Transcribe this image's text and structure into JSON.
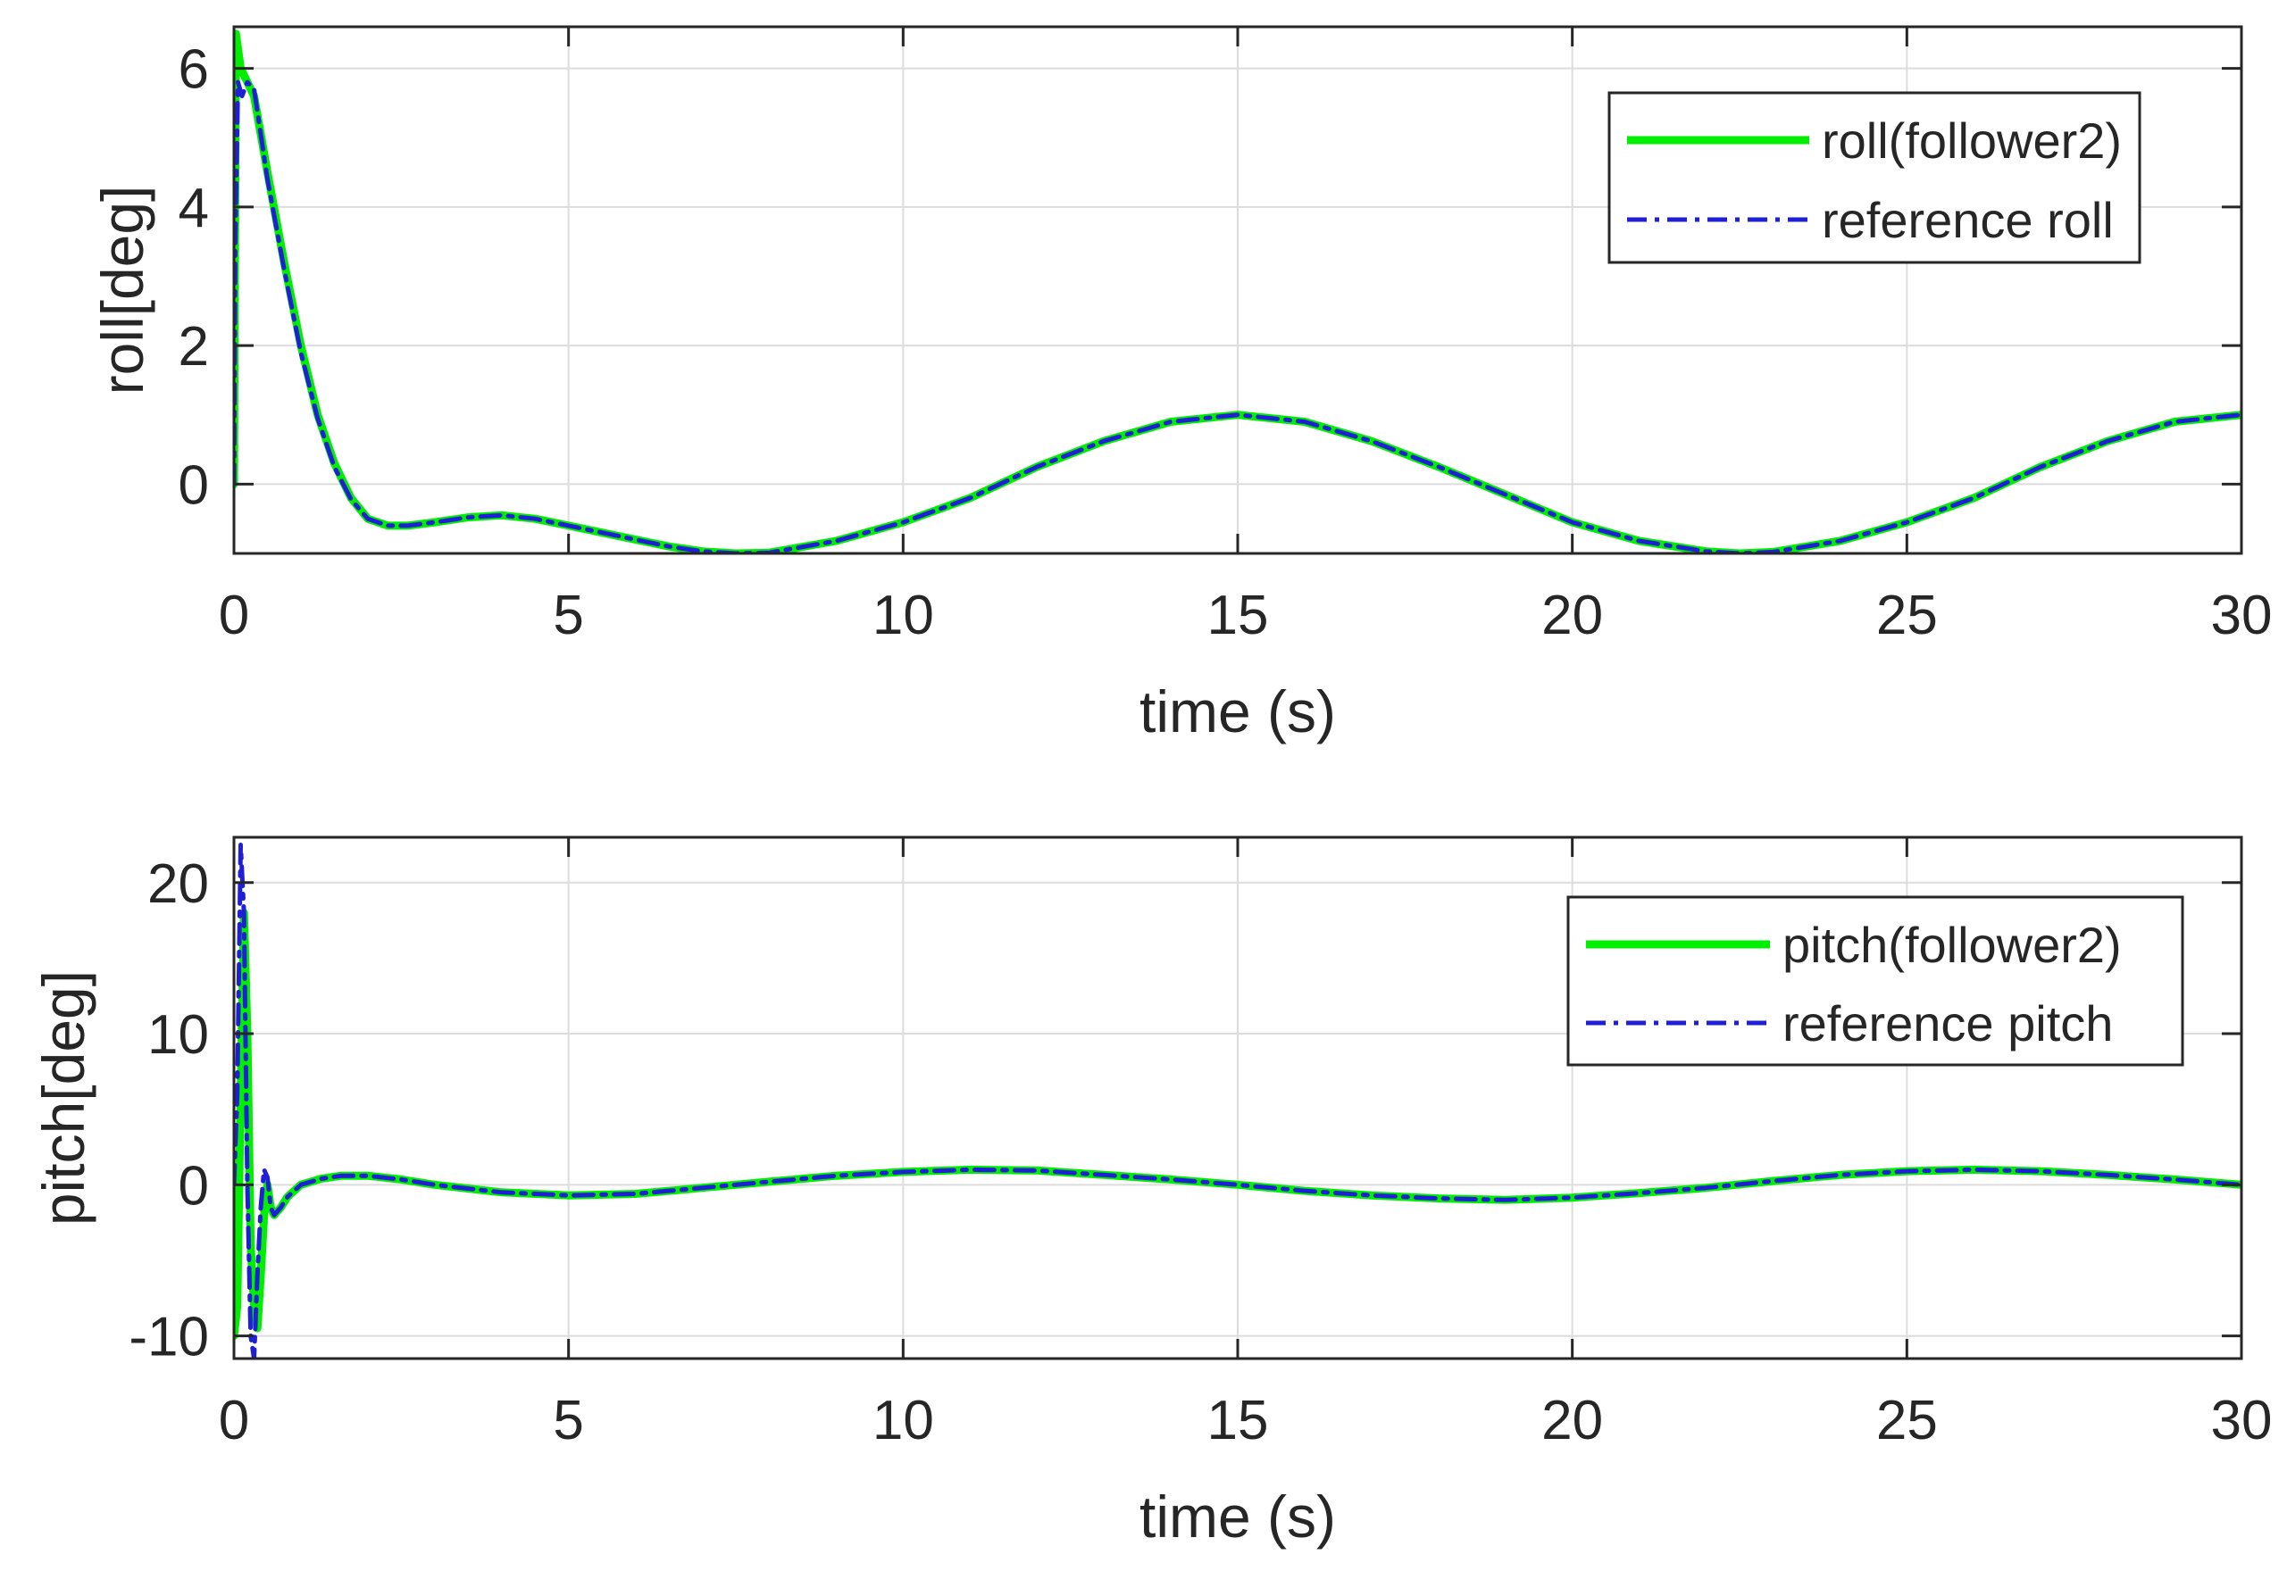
{
  "chart_data": [
    {
      "type": "line",
      "xlabel": "time (s)",
      "ylabel": "roll[deg]",
      "xlim": [
        0,
        30
      ],
      "ylim": [
        -1,
        6.6
      ],
      "xticks": [
        0,
        5,
        10,
        15,
        20,
        25,
        30
      ],
      "yticks": [
        0,
        2,
        4,
        6
      ],
      "grid": true,
      "legend_location": "top-right",
      "colors": {
        "follower": "#00ee00",
        "reference": "#1f1fd6"
      },
      "series": [
        {
          "name": "roll(follower2)",
          "style": "solid",
          "x": [
            0,
            0.03,
            0.1,
            0.3,
            0.5,
            0.75,
            1.0,
            1.25,
            1.5,
            1.75,
            2.0,
            2.3,
            2.6,
            3.0,
            3.5,
            4.0,
            4.5,
            5.0,
            5.5,
            6.0,
            6.5,
            7.0,
            7.5,
            8.0,
            9.0,
            10.0,
            11.0,
            12.0,
            13.0,
            14.0,
            15.0,
            16.0,
            17.0,
            18.0,
            19.0,
            20.0,
            21.0,
            22.0,
            22.5,
            23.0,
            24.0,
            25.0,
            26.0,
            27.0,
            28.0,
            29.0,
            30.0
          ],
          "y": [
            0,
            6.5,
            6.0,
            5.6,
            4.5,
            3.2,
            2.0,
            1.0,
            0.3,
            -0.2,
            -0.5,
            -0.6,
            -0.6,
            -0.55,
            -0.48,
            -0.45,
            -0.5,
            -0.6,
            -0.7,
            -0.8,
            -0.9,
            -0.97,
            -1.0,
            -0.99,
            -0.82,
            -0.55,
            -0.2,
            0.25,
            0.62,
            0.9,
            1.0,
            0.9,
            0.62,
            0.25,
            -0.15,
            -0.55,
            -0.82,
            -0.97,
            -1.0,
            -0.98,
            -0.82,
            -0.55,
            -0.2,
            0.25,
            0.62,
            0.9,
            1.0
          ]
        },
        {
          "name": "reference roll",
          "style": "dashdot",
          "x": [
            0,
            0.02,
            0.06,
            0.12,
            0.2,
            0.3,
            0.5,
            0.75,
            1.0,
            1.25,
            1.5,
            1.75,
            2.0,
            2.3,
            2.6,
            3.0,
            3.5,
            4.0,
            4.5,
            5.0,
            5.5,
            6.0,
            6.5,
            7.0,
            7.5,
            8.0,
            9.0,
            10.0,
            11.0,
            12.0,
            13.0,
            14.0,
            15.0,
            16.0,
            17.0,
            18.0,
            19.0,
            20.0,
            21.0,
            22.0,
            22.5,
            23.0,
            24.0,
            25.0,
            26.0,
            27.0,
            28.0,
            29.0,
            30.0
          ],
          "y": [
            0,
            3.5,
            5.8,
            5.6,
            5.8,
            5.7,
            4.4,
            3.1,
            1.9,
            0.95,
            0.25,
            -0.22,
            -0.5,
            -0.6,
            -0.6,
            -0.55,
            -0.48,
            -0.45,
            -0.5,
            -0.6,
            -0.7,
            -0.8,
            -0.9,
            -0.97,
            -1.0,
            -0.99,
            -0.82,
            -0.55,
            -0.2,
            0.25,
            0.62,
            0.9,
            1.0,
            0.9,
            0.62,
            0.25,
            -0.15,
            -0.55,
            -0.82,
            -0.97,
            -1.0,
            -0.98,
            -0.82,
            -0.55,
            -0.2,
            0.25,
            0.62,
            0.9,
            1.0
          ]
        }
      ]
    },
    {
      "type": "line",
      "xlabel": "time (s)",
      "ylabel": "pitch[deg]",
      "xlim": [
        0,
        30
      ],
      "ylim": [
        -11.5,
        23
      ],
      "xticks": [
        0,
        5,
        10,
        15,
        20,
        25,
        30
      ],
      "yticks": [
        -10,
        0,
        10,
        20
      ],
      "grid": true,
      "legend_location": "top-right",
      "colors": {
        "follower": "#00ee00",
        "reference": "#1f1fd6"
      },
      "series": [
        {
          "name": "pitch(follower2)",
          "style": "solid",
          "x": [
            0,
            0.05,
            0.1,
            0.15,
            0.2,
            0.25,
            0.3,
            0.35,
            0.4,
            0.45,
            0.5,
            0.55,
            0.6,
            0.7,
            0.8,
            1.0,
            1.3,
            1.6,
            2.0,
            2.5,
            3.0,
            4.0,
            5.0,
            6.0,
            7.0,
            8.0,
            9.0,
            10.0,
            11.0,
            12.0,
            13.0,
            14.0,
            15.0,
            16.0,
            17.0,
            18.0,
            19.0,
            20.0,
            21.0,
            22.0,
            23.0,
            24.0,
            25.0,
            26.0,
            27.0,
            28.0,
            29.0,
            30.0
          ],
          "y": [
            -10,
            -8,
            6,
            18,
            10,
            -4,
            -8,
            -9.5,
            -6,
            -2,
            0,
            -1.5,
            -2,
            -1.5,
            -0.8,
            0,
            0.4,
            0.6,
            0.6,
            0.35,
            0,
            -0.5,
            -0.7,
            -0.6,
            -0.2,
            0.2,
            0.6,
            0.85,
            1.0,
            0.95,
            0.65,
            0.35,
            0,
            -0.4,
            -0.7,
            -0.9,
            -1.0,
            -0.85,
            -0.55,
            -0.2,
            0.25,
            0.65,
            0.9,
            1.0,
            0.9,
            0.65,
            0.35,
            0
          ]
        },
        {
          "name": "reference pitch",
          "style": "dashdot",
          "x": [
            0,
            0.05,
            0.1,
            0.15,
            0.2,
            0.25,
            0.3,
            0.35,
            0.4,
            0.45,
            0.5,
            0.55,
            0.6,
            0.7,
            0.8,
            1.0,
            1.3,
            1.6,
            2.0,
            2.5,
            3.0,
            4.0,
            5.0,
            6.0,
            7.0,
            8.0,
            9.0,
            10.0,
            11.0,
            12.0,
            13.0,
            14.0,
            15.0,
            16.0,
            17.0,
            18.0,
            19.0,
            20.0,
            21.0,
            22.0,
            23.0,
            24.0,
            25.0,
            26.0,
            27.0,
            28.0,
            29.0,
            30.0
          ],
          "y": [
            0,
            6,
            22.5,
            18,
            0,
            -10,
            -11.5,
            -6,
            -1.5,
            1,
            0.5,
            -1.5,
            -2,
            -1.5,
            -0.8,
            0,
            0.4,
            0.6,
            0.6,
            0.35,
            0,
            -0.5,
            -0.7,
            -0.6,
            -0.2,
            0.2,
            0.6,
            0.85,
            1.0,
            0.95,
            0.65,
            0.35,
            0,
            -0.4,
            -0.7,
            -0.9,
            -1.0,
            -0.85,
            -0.55,
            -0.2,
            0.25,
            0.65,
            0.9,
            1.0,
            0.9,
            0.65,
            0.35,
            0
          ]
        }
      ]
    }
  ]
}
